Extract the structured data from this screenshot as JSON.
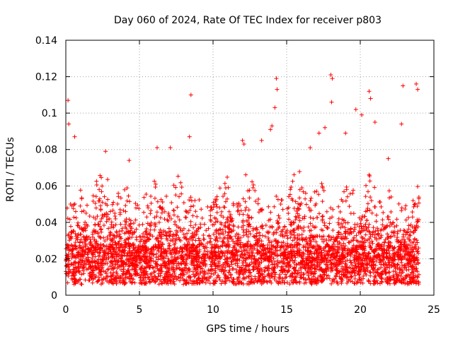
{
  "chart_data": {
    "type": "scatter",
    "title": "Day 060 of 2024, Rate Of TEC Index for receiver p803",
    "xlabel": "GPS time / hours",
    "ylabel": "ROTI / TECUs",
    "xlim": [
      0,
      25
    ],
    "ylim": [
      0,
      0.14
    ],
    "grid": true,
    "marker": "+",
    "color": "#ff0000",
    "x_ticks": [
      0,
      5,
      10,
      15,
      20,
      25
    ],
    "x_tick_labels": [
      "0",
      "5",
      "10",
      "15",
      "20",
      "25"
    ],
    "y_ticks": [
      0,
      0.02,
      0.04,
      0.06,
      0.08,
      0.1,
      0.12,
      0.14
    ],
    "y_tick_labels": [
      "0",
      "0.02",
      "0.04",
      "0.06",
      "0.08",
      "0.1",
      "0.12",
      "0.14"
    ],
    "data_extent_hours": [
      0,
      24
    ],
    "notable_points": {
      "x": [
        0.15,
        0.2,
        0.6,
        8.5,
        8.4,
        14.3,
        14.35,
        14.2,
        18.0,
        18.1,
        18.05,
        19.7,
        20.6,
        20.7,
        22.9,
        23.8,
        23.9,
        2.7,
        4.3,
        6.2,
        7.1,
        12.0,
        12.1,
        13.3,
        13.9,
        14.0,
        16.6,
        17.2,
        17.6,
        19.0,
        20.1,
        21.0,
        21.9,
        22.8
      ],
      "y": [
        0.107,
        0.094,
        0.087,
        0.11,
        0.087,
        0.119,
        0.113,
        0.103,
        0.121,
        0.119,
        0.106,
        0.102,
        0.112,
        0.108,
        0.115,
        0.116,
        0.113,
        0.079,
        0.074,
        0.081,
        0.081,
        0.085,
        0.083,
        0.085,
        0.091,
        0.093,
        0.081,
        0.089,
        0.092,
        0.089,
        0.099,
        0.095,
        0.075,
        0.094
      ]
    }
  }
}
